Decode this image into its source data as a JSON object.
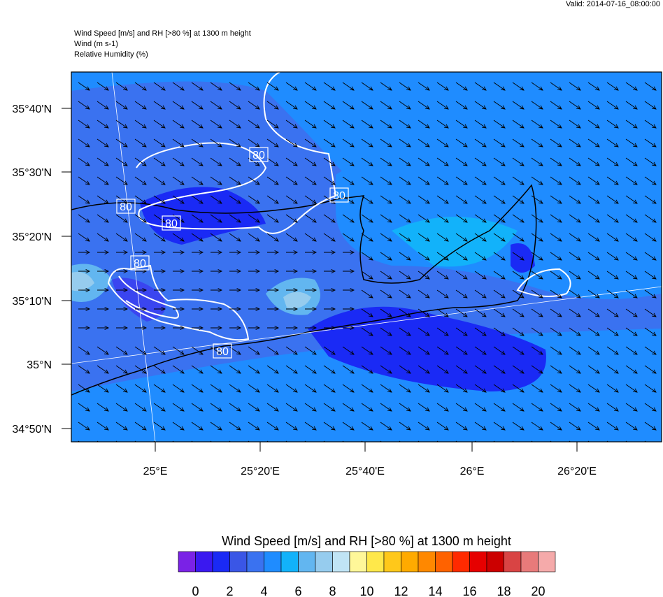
{
  "valid": "Valid: 2014-07-16_08:00:00",
  "header": [
    "Wind Speed [m/s] and RH [>80 %] at 1300 m height",
    "Wind   (m s-1)",
    "Relative Humidity   (%)"
  ],
  "lat_labels": [
    "35°40'N",
    "35°30'N",
    "35°20'N",
    "35°10'N",
    "35°N",
    "34°50'N"
  ],
  "lon_labels": [
    "25°E",
    "25°20'E",
    "25°40'E",
    "26°E",
    "26°20'E"
  ],
  "contour_labels": [
    "80",
    "80",
    "80",
    "80",
    "80",
    "80"
  ],
  "colorbar": {
    "title": "Wind Speed [m/s] and RH [>80 %] at 1300 m height",
    "colors": [
      "#7a22e6",
      "#3a18f0",
      "#1a2af5",
      "#3a56e6",
      "#3a72f0",
      "#1f8cff",
      "#12b2fa",
      "#62b6f0",
      "#96ccee",
      "#c0e4f5",
      "#fff799",
      "#ffe84a",
      "#ffc81a",
      "#ffaa00",
      "#ff8800",
      "#ff6200",
      "#ff2a00",
      "#e60000",
      "#cc0000",
      "#d94444",
      "#e87a7a",
      "#f5aaaa"
    ],
    "ticks": [
      0,
      2,
      4,
      6,
      8,
      10,
      12,
      14,
      16,
      18,
      20
    ]
  }
}
